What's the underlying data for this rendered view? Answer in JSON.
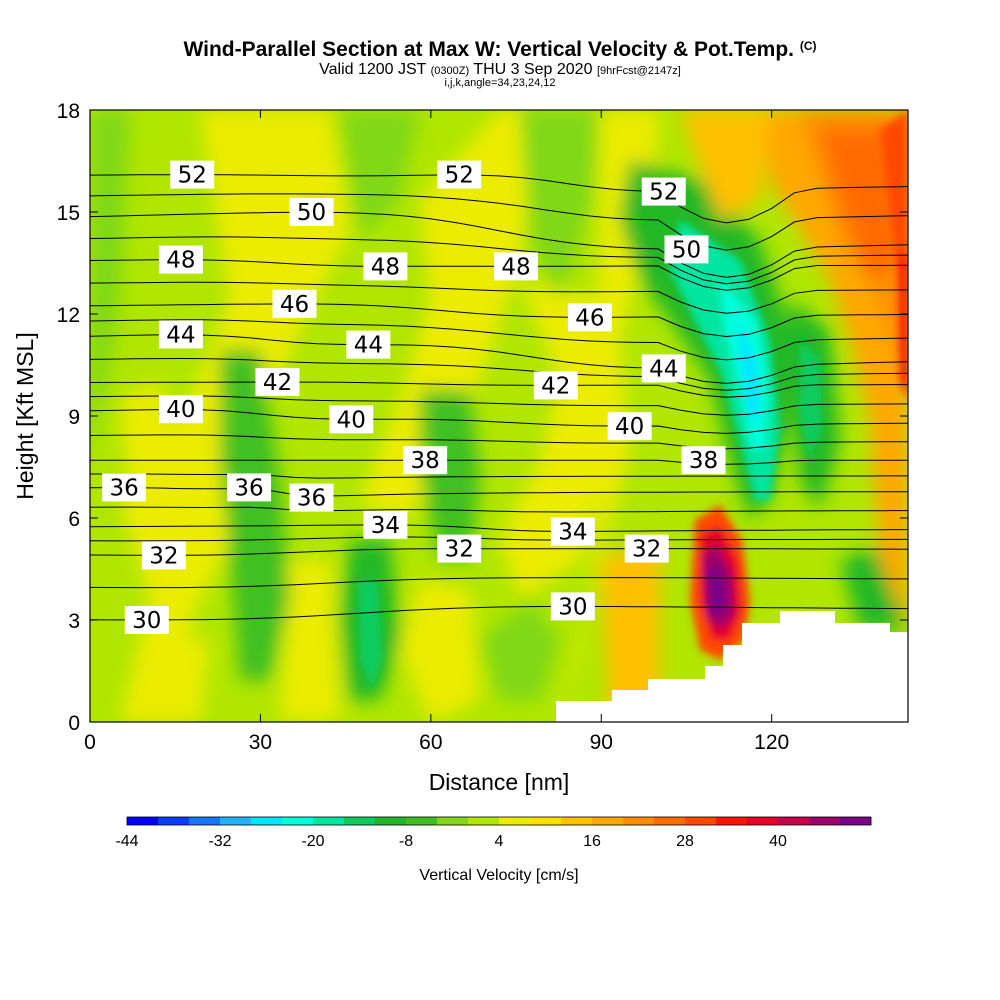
{
  "header": {
    "title": "Wind-Parallel Section at Max W: Vertical Velocity & Pot.Temp.",
    "copyright": "(C)",
    "valid_prefix": "Valid 1200 JST",
    "valid_z": "(0300Z)",
    "valid_date": "THU 3 Sep 2020",
    "forecast": "[9hrFcst@2147z]",
    "indices": "i,j,k,angle=34,23,24,12"
  },
  "chart_data": {
    "type": "heatmap",
    "xlabel": "Distance [nm]",
    "ylabel": "Height [Kft MSL]",
    "xlim": [
      0,
      144
    ],
    "ylim": [
      0,
      18
    ],
    "x_ticks": [
      "0",
      "30",
      "60",
      "90",
      "120"
    ],
    "y_ticks": [
      "0",
      "3",
      "6",
      "9",
      "12",
      "15",
      "18"
    ],
    "colorbar": {
      "label": "Vertical Velocity [cm/s]",
      "min": -44,
      "max": 52,
      "step": 4,
      "tick_labels": [
        "-44",
        "-32",
        "-20",
        "-8",
        "4",
        "16",
        "28",
        "40"
      ],
      "colors": [
        "#0000ff",
        "#0a3cff",
        "#1478ff",
        "#1eb4ff",
        "#00e6ff",
        "#00ffdc",
        "#00e6a0",
        "#10cc60",
        "#20b828",
        "#40c020",
        "#80d818",
        "#b0e600",
        "#ecec00",
        "#ffe000",
        "#ffc000",
        "#ffa800",
        "#ff8c00",
        "#ff6a00",
        "#ff4800",
        "#ff1400",
        "#e60028",
        "#c8004a",
        "#9c006c",
        "#7a0088"
      ]
    },
    "theta_labels": [
      {
        "value": "52",
        "x": 18,
        "y": 16.1
      },
      {
        "value": "52",
        "x": 65,
        "y": 16.1
      },
      {
        "value": "52",
        "x": 101,
        "y": 15.6
      },
      {
        "value": "50",
        "x": 39,
        "y": 15.0
      },
      {
        "value": "50",
        "x": 105,
        "y": 13.9
      },
      {
        "value": "48",
        "x": 16,
        "y": 13.6
      },
      {
        "value": "48",
        "x": 52,
        "y": 13.4
      },
      {
        "value": "48",
        "x": 75,
        "y": 13.4
      },
      {
        "value": "46",
        "x": 36,
        "y": 12.3
      },
      {
        "value": "46",
        "x": 88,
        "y": 11.9
      },
      {
        "value": "44",
        "x": 16,
        "y": 11.4
      },
      {
        "value": "44",
        "x": 49,
        "y": 11.1
      },
      {
        "value": "44",
        "x": 101,
        "y": 10.4
      },
      {
        "value": "42",
        "x": 33,
        "y": 10.0
      },
      {
        "value": "42",
        "x": 82,
        "y": 9.9
      },
      {
        "value": "40",
        "x": 16,
        "y": 9.2
      },
      {
        "value": "40",
        "x": 46,
        "y": 8.9
      },
      {
        "value": "40",
        "x": 95,
        "y": 8.7
      },
      {
        "value": "38",
        "x": 59,
        "y": 7.7
      },
      {
        "value": "38",
        "x": 108,
        "y": 7.7
      },
      {
        "value": "36",
        "x": 6,
        "y": 6.9
      },
      {
        "value": "36",
        "x": 28,
        "y": 6.9
      },
      {
        "value": "36",
        "x": 39,
        "y": 6.6
      },
      {
        "value": "34",
        "x": 52,
        "y": 5.8
      },
      {
        "value": "34",
        "x": 85,
        "y": 5.6
      },
      {
        "value": "32",
        "x": 13,
        "y": 4.9
      },
      {
        "value": "32",
        "x": 65,
        "y": 5.1
      },
      {
        "value": "32",
        "x": 98,
        "y": 5.1
      },
      {
        "value": "30",
        "x": 10,
        "y": 3.0
      },
      {
        "value": "30",
        "x": 85,
        "y": 3.4
      }
    ]
  }
}
